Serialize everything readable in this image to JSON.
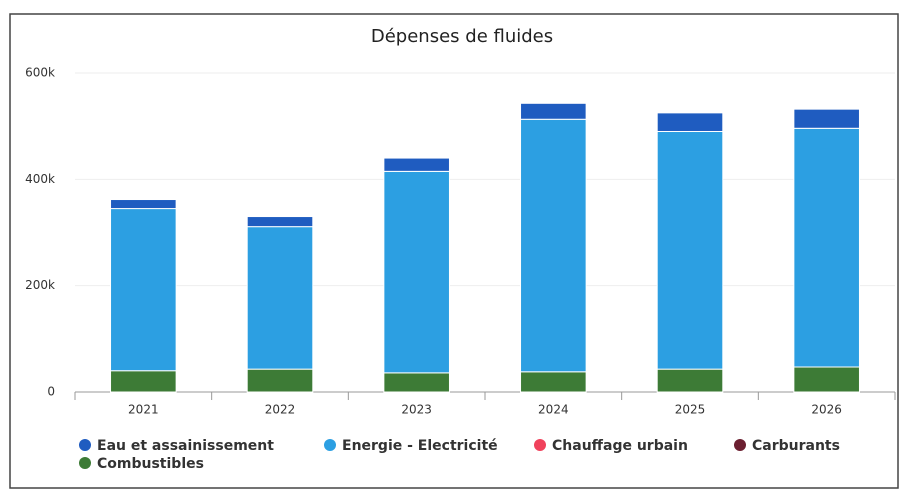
{
  "chart_data": {
    "type": "stacked_bar",
    "title": "Dépenses de fluides",
    "categories": [
      "2021",
      "2022",
      "2023",
      "2024",
      "2025",
      "2026"
    ],
    "series": [
      {
        "name": "Eau et assainissement",
        "color": "#1f5cc0",
        "values": [
          17000,
          19000,
          25000,
          30000,
          35000,
          36000
        ]
      },
      {
        "name": "Energie - Electricité",
        "color": "#2c9fe2",
        "values": [
          305000,
          268000,
          379000,
          475000,
          447000,
          449000
        ]
      },
      {
        "name": "Chauffage urbain",
        "color": "#f0425c",
        "values": [
          0,
          0,
          0,
          0,
          0,
          0
        ]
      },
      {
        "name": "Carburants",
        "color": "#6b1f30",
        "values": [
          0,
          0,
          0,
          0,
          0,
          0
        ]
      },
      {
        "name": "Combustibles",
        "color": "#3d7b36",
        "values": [
          40000,
          43000,
          36000,
          38000,
          43000,
          47000
        ]
      }
    ],
    "ylim": [
      0,
      600000
    ],
    "yticks": [
      0,
      {
        "value": 200000,
        "label": "200k"
      },
      {
        "value": 400000,
        "label": "400k"
      },
      {
        "value": 600000,
        "label": "600k"
      }
    ],
    "grid": true
  }
}
